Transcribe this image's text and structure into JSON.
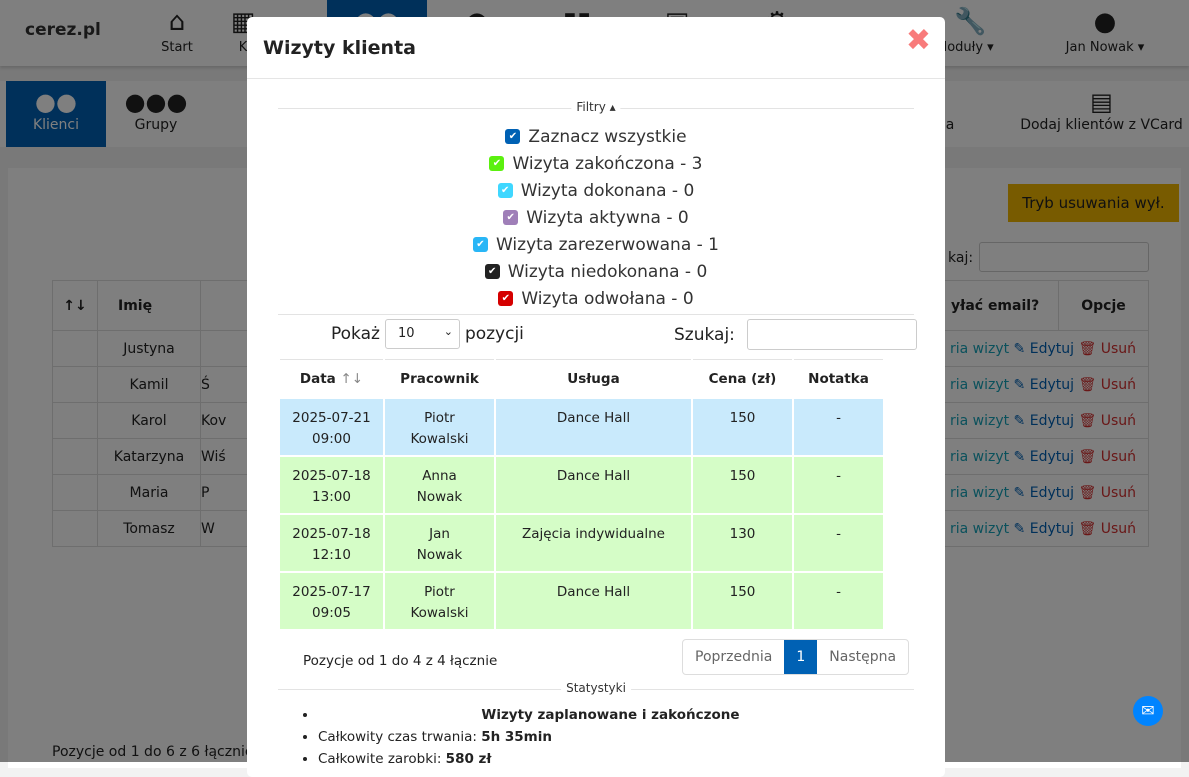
{
  "nav": {
    "logo": "cerez.pl",
    "items": [
      {
        "label": "Start",
        "icon": "home-icon"
      },
      {
        "label": "K",
        "icon": "calendar-icon"
      },
      {
        "label": "",
        "icon": "users-icon"
      },
      {
        "label": "",
        "icon": "user-icon"
      },
      {
        "label": "",
        "icon": "chart-icon"
      },
      {
        "label": "",
        "icon": "briefcase-icon"
      },
      {
        "label": "",
        "icon": "gears-icon"
      },
      {
        "label": "Moduły ▾",
        "icon": "wrench-icon"
      },
      {
        "label": "Jan Nowak ▾",
        "icon": "user-icon"
      }
    ]
  },
  "subnav": {
    "items": [
      {
        "label": "Klienci"
      },
      {
        "label": "Grupy"
      },
      {
        "label": "a"
      },
      {
        "label": "Dodaj klientów z VCard"
      }
    ]
  },
  "background": {
    "delete_mode": "Tryb usuwania wył.",
    "search_label": "kaj:",
    "headers": [
      "Imię",
      "yłać email?",
      "Opcje"
    ],
    "rows": [
      [
        "Justyna",
        ""
      ],
      [
        "Kamil",
        "Ś"
      ],
      [
        "Karol",
        "Kov"
      ],
      [
        "Katarzyna",
        "Wiś"
      ],
      [
        "Maria",
        "P"
      ],
      [
        "Tomasz",
        "W"
      ]
    ],
    "history": "ria wizyt",
    "edit": "Edytuj",
    "delete": "Usuń",
    "info": "Pozycje od 1 do 6 z 6 łącznie"
  },
  "modal": {
    "title": "Wizyty klienta",
    "filters_label": "Filtry ▴",
    "filters": [
      {
        "label": "Zaznacz wszystkie",
        "color": "#0061b4"
      },
      {
        "label": "Wizyta zakończona - 3",
        "color": "#5bf00f"
      },
      {
        "label": "Wizyta dokonana - 0",
        "color": "#3fd7ff"
      },
      {
        "label": "Wizyta aktywna - 0",
        "color": "#9f7fb8"
      },
      {
        "label": "Wizyta zarezerwowana - 1",
        "color": "#29b6f6"
      },
      {
        "label": "Wizyta niedokonana - 0",
        "color": "#222222"
      },
      {
        "label": "Wizyta odwołana - 0",
        "color": "#d50000"
      }
    ],
    "show_label": "Pokaż",
    "show_value": "10",
    "show_suffix": "pozycji",
    "search_label": "Szukaj:",
    "headers": [
      "Data",
      "Pracownik",
      "Usługa",
      "Cena (zł)",
      "Notatka"
    ],
    "rows": [
      {
        "date": "2025-07-21",
        "time": "09:00",
        "emp1": "Piotr",
        "emp2": "Kowalski",
        "service": "Dance Hall",
        "price": "150",
        "note": "-",
        "status": "blue"
      },
      {
        "date": "2025-07-18",
        "time": "13:00",
        "emp1": "Anna",
        "emp2": "Nowak",
        "service": "Dance Hall",
        "price": "150",
        "note": "-",
        "status": "green"
      },
      {
        "date": "2025-07-18",
        "time": "12:10",
        "emp1": "Jan",
        "emp2": "Nowak",
        "service": "Zajęcia indywidualne",
        "price": "130",
        "note": "-",
        "status": "green"
      },
      {
        "date": "2025-07-17",
        "time": "09:05",
        "emp1": "Piotr",
        "emp2": "Kowalski",
        "service": "Dance Hall",
        "price": "150",
        "note": "-",
        "status": "green"
      }
    ],
    "info": "Pozycje od 1 do 4 z 4 łącznie",
    "prev": "Poprzednia",
    "page": "1",
    "next": "Następna",
    "stats_label": "Statystyki",
    "stats_title": "Wizyty zaplanowane i zakończone",
    "duration_label": "Całkowity czas trwania: ",
    "duration": "5h 35min",
    "earnings_label": "Całkowite zarobki: ",
    "earnings": "580 zł"
  }
}
